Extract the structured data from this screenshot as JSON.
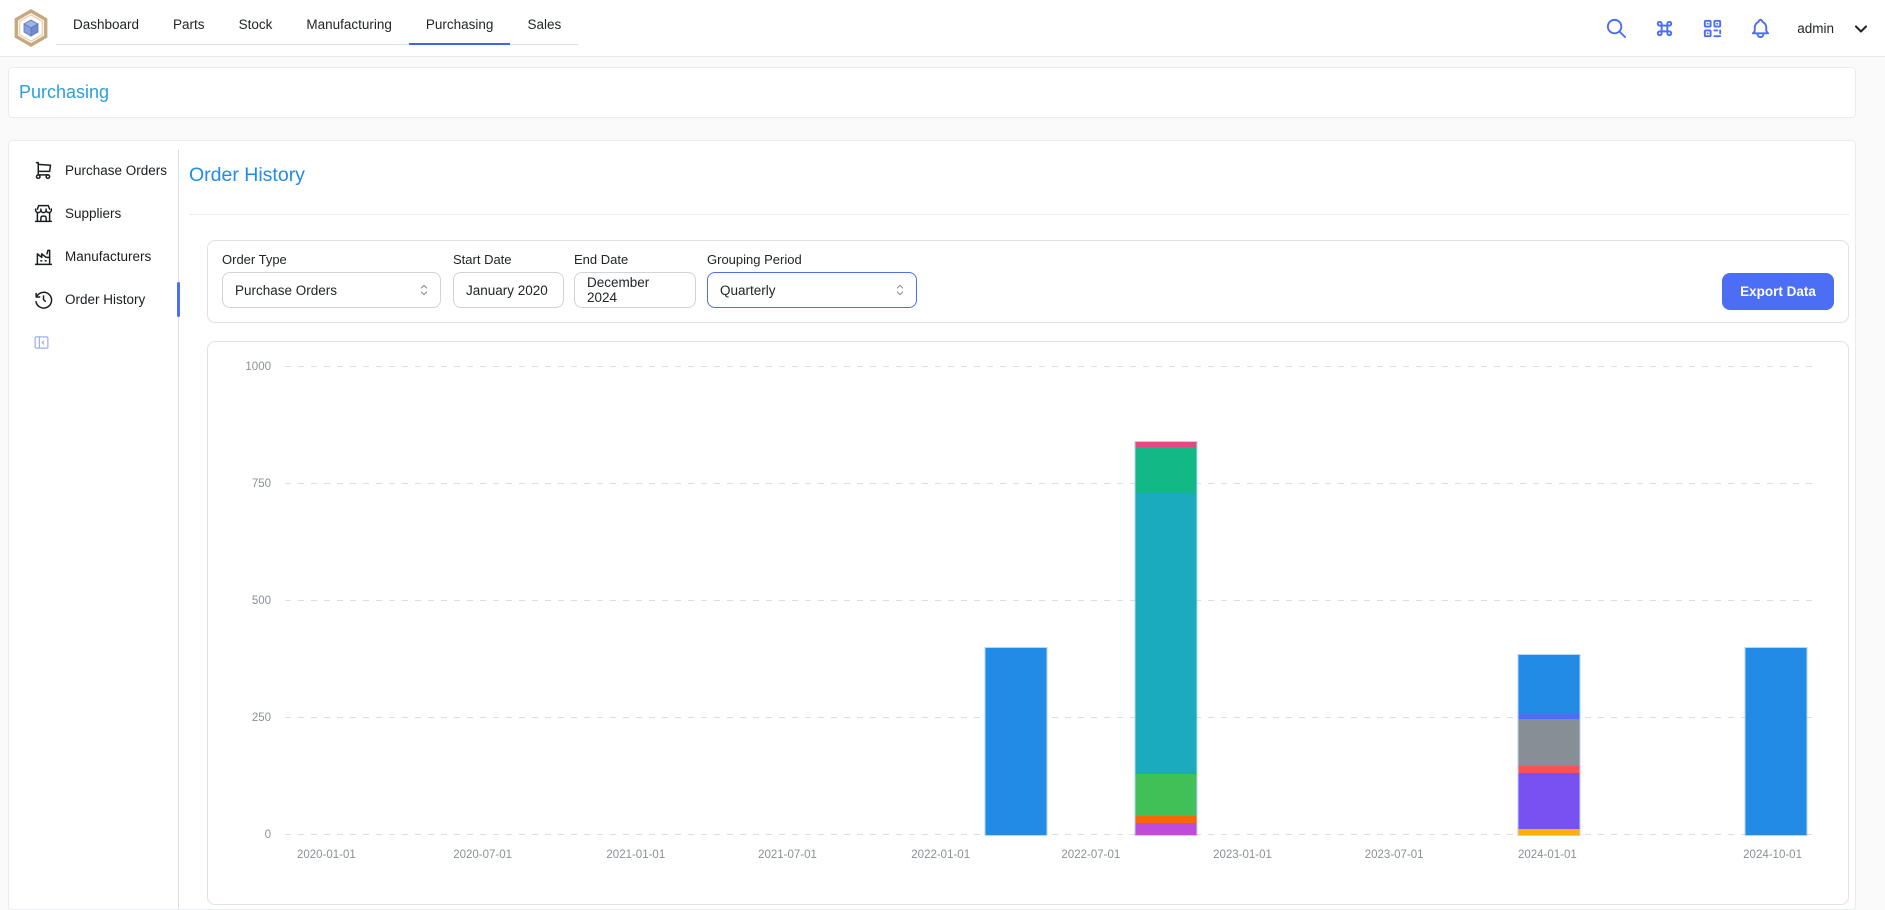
{
  "navbar": {
    "tabs": [
      "Dashboard",
      "Parts",
      "Stock",
      "Manufacturing",
      "Purchasing",
      "Sales"
    ],
    "active_tab": "Purchasing",
    "username": "admin",
    "icons": [
      "search-icon",
      "command-icon",
      "qr-scan-icon",
      "bell-icon",
      "chevron-down-icon"
    ]
  },
  "breadcrumb": {
    "label": "Purchasing"
  },
  "sidebar": {
    "items": [
      {
        "label": "Purchase Orders",
        "icon": "shopping-cart-icon",
        "active": false
      },
      {
        "label": "Suppliers",
        "icon": "building-store-icon",
        "active": false
      },
      {
        "label": "Manufacturers",
        "icon": "factory-icon",
        "active": false
      },
      {
        "label": "Order History",
        "icon": "history-icon",
        "active": true
      }
    ]
  },
  "content": {
    "title": "Order History",
    "filters": {
      "order_type": {
        "label": "Order Type",
        "value": "Purchase Orders"
      },
      "start_date": {
        "label": "Start Date",
        "value": "January 2020"
      },
      "end_date": {
        "label": "End Date",
        "value": "December 2024"
      },
      "grouping": {
        "label": "Grouping Period",
        "value": "Quarterly",
        "focused": true
      },
      "export_label": "Export Data"
    }
  },
  "colors": {
    "accent_indigo": "#4c6ef5",
    "tab_underline": "#4263eb",
    "breadcrumb_blue": "#2b9fd8",
    "heading_blue": "#228be6",
    "axis_text": "#8a9097",
    "panel_border": "#dee2e6"
  },
  "chart_data": {
    "type": "bar",
    "stacked": true,
    "grid": "dashed-horizontal",
    "legend": "none",
    "ylim": [
      0,
      1000
    ],
    "y_ticks": [
      0,
      250,
      500,
      750,
      1000
    ],
    "x_ticks": [
      {
        "label": "2020-01-01",
        "f": 0.027
      },
      {
        "label": "2020-07-01",
        "f": 0.129
      },
      {
        "label": "2021-01-01",
        "f": 0.229
      },
      {
        "label": "2021-07-01",
        "f": 0.328
      },
      {
        "label": "2022-01-01",
        "f": 0.428
      },
      {
        "label": "2022-07-01",
        "f": 0.526
      },
      {
        "label": "2023-01-01",
        "f": 0.625
      },
      {
        "label": "2023-07-01",
        "f": 0.724
      },
      {
        "label": "2024-01-01",
        "f": 0.824
      },
      {
        "label": "2024-10-01",
        "f": 0.971
      }
    ],
    "bars": [
      {
        "x": "2022-04-01",
        "f": 0.477,
        "total": 400,
        "segments": [
          {
            "color": "#228be6",
            "value": 400
          }
        ]
      },
      {
        "x": "2022-10-01",
        "f": 0.575,
        "total": 840,
        "segments": [
          {
            "color": "#be4bdb",
            "value": 25
          },
          {
            "color": "#f76707",
            "value": 15
          },
          {
            "color": "#40c057",
            "value": 90
          },
          {
            "color": "#1aabbf",
            "value": 600
          },
          {
            "color": "#12b886",
            "value": 100
          },
          {
            "color": "#e64980",
            "value": 10
          }
        ]
      },
      {
        "x": "2024-01-01",
        "f": 0.825,
        "total": 385,
        "segments": [
          {
            "color": "#fab005",
            "value": 13
          },
          {
            "color": "#7950f2",
            "value": 120
          },
          {
            "color": "#fa5252",
            "value": 15
          },
          {
            "color": "#868e96",
            "value": 100
          },
          {
            "color": "#4c6ef5",
            "value": 12
          },
          {
            "color": "#228be6",
            "value": 125
          }
        ]
      },
      {
        "x": "2024-10-01",
        "f": 0.973,
        "total": 400,
        "segments": [
          {
            "color": "#228be6",
            "value": 400
          }
        ]
      }
    ]
  }
}
